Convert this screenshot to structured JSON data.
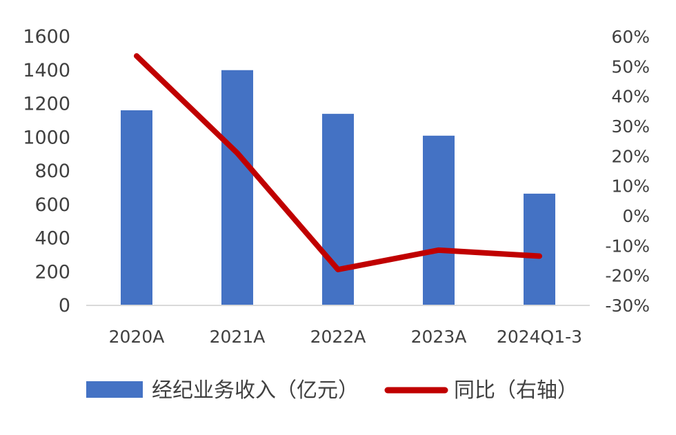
{
  "chart_data": {
    "type": "bar+line",
    "categories": [
      "2020A",
      "2021A",
      "2022A",
      "2023A",
      "2024Q1-3"
    ],
    "series": [
      {
        "name": "经纪业务收入（亿元）",
        "type": "bar",
        "axis": "left",
        "color": "#4472C4",
        "values": [
          1161,
          1400,
          1140,
          1010,
          665
        ]
      },
      {
        "name": "同比（右轴）",
        "type": "line",
        "axis": "right",
        "color": "#C00000",
        "values": [
          0.535,
          0.21,
          -0.18,
          -0.115,
          -0.135
        ]
      }
    ],
    "y_left": {
      "min": 0,
      "max": 1600,
      "ticks": [
        0,
        200,
        400,
        600,
        800,
        1000,
        1200,
        1400,
        1600
      ],
      "tick_labels": [
        "0",
        "200",
        "400",
        "600",
        "800",
        "1000",
        "1200",
        "1400",
        "1600"
      ]
    },
    "y_right": {
      "min": -0.3,
      "max": 0.6,
      "ticks": [
        -0.3,
        -0.2,
        -0.1,
        0,
        0.1,
        0.2,
        0.3,
        0.4,
        0.5,
        0.6
      ],
      "tick_labels": [
        "-30%",
        "-20%",
        "-10%",
        "0%",
        "10%",
        "20%",
        "30%",
        "40%",
        "50%",
        "60%"
      ]
    },
    "grid": false,
    "legend_position": "bottom"
  }
}
